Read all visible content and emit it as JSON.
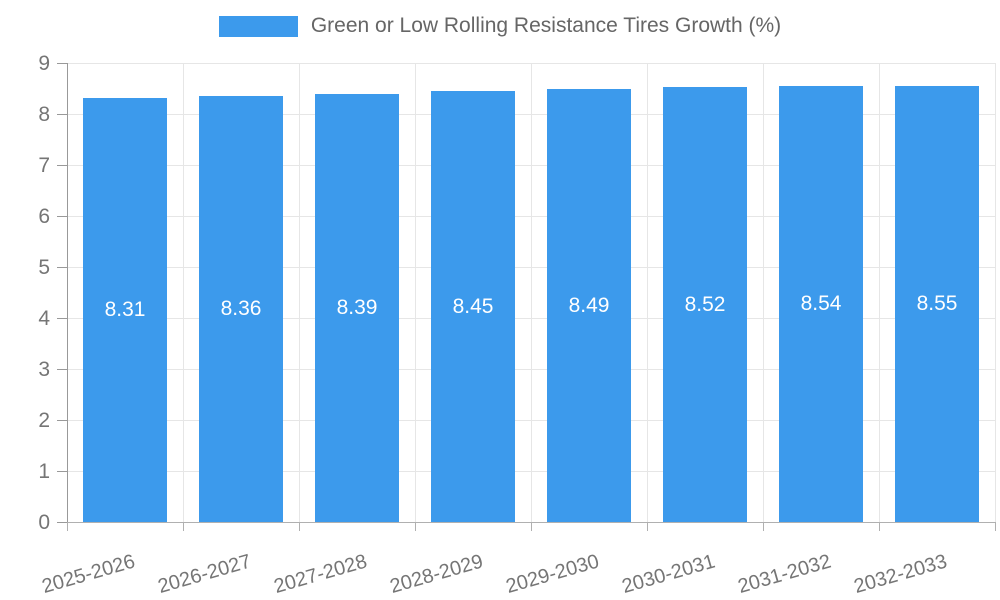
{
  "chart_data": {
    "type": "bar",
    "title": "",
    "legend": {
      "label": "Green or Low Rolling Resistance Tires Growth (%)",
      "position": "top"
    },
    "categories": [
      "2025-2026",
      "2026-2027",
      "2027-2028",
      "2028-2029",
      "2029-2030",
      "2030-2031",
      "2031-2032",
      "2032-2033"
    ],
    "series": [
      {
        "name": "Green or Low Rolling Resistance Tires Growth (%)",
        "values": [
          8.31,
          8.36,
          8.39,
          8.45,
          8.49,
          8.52,
          8.54,
          8.55
        ],
        "data_labels": [
          "8.31",
          "8.36",
          "8.39",
          "8.45",
          "8.49",
          "8.52",
          "8.54",
          "8.55"
        ]
      }
    ],
    "xlabel": "",
    "ylabel": "",
    "ylim": [
      0,
      9
    ],
    "yticks": [
      "0",
      "1",
      "2",
      "3",
      "4",
      "5",
      "6",
      "7",
      "8",
      "9"
    ],
    "grid": true,
    "colors": {
      "bar": "#3c9aec",
      "gridline": "#e6e6e6",
      "axis": "#999999",
      "tick_text": "#757575",
      "legend_text": "#666666",
      "bar_label_text": "#ffffff"
    }
  }
}
